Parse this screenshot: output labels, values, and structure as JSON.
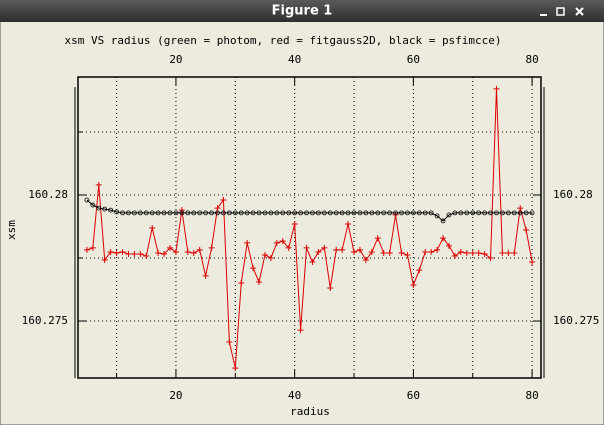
{
  "window": {
    "title": "Figure 1"
  },
  "chart_data": {
    "type": "line",
    "title": "xsm VS radius (green = photom, red = fitgauss2D, black = psfimcce)",
    "xlabel": "radius",
    "ylabel": "xsm",
    "x": [
      5,
      6,
      7,
      8,
      9,
      10,
      11,
      12,
      13,
      14,
      15,
      16,
      17,
      18,
      19,
      20,
      21,
      22,
      23,
      24,
      25,
      26,
      27,
      28,
      29,
      30,
      31,
      32,
      33,
      34,
      35,
      36,
      37,
      38,
      39,
      40,
      41,
      42,
      43,
      44,
      45,
      46,
      47,
      48,
      49,
      50,
      51,
      52,
      53,
      54,
      55,
      56,
      57,
      58,
      59,
      60,
      61,
      62,
      63,
      64,
      65,
      66,
      67,
      68,
      69,
      70,
      71,
      72,
      73,
      74,
      75,
      76,
      77,
      78,
      79,
      80
    ],
    "series": [
      {
        "color": "#dd0000",
        "marker": "+",
        "values": [
          160.27782,
          160.2779,
          160.2804,
          160.27742,
          160.27774,
          160.2777,
          160.27774,
          160.27766,
          160.27766,
          160.27766,
          160.27758,
          160.27869,
          160.2777,
          160.27766,
          160.2779,
          160.27774,
          160.2794,
          160.27774,
          160.2777,
          160.27782,
          160.27679,
          160.2779,
          160.27948,
          160.2798,
          160.27417,
          160.27313,
          160.27651,
          160.2781,
          160.2771,
          160.27655,
          160.27762,
          160.2775,
          160.2781,
          160.27817,
          160.2779,
          160.27885,
          160.27464,
          160.2779,
          160.27734,
          160.27774,
          160.2779,
          160.27631,
          160.27782,
          160.27782,
          160.27885,
          160.27774,
          160.27782,
          160.27742,
          160.27774,
          160.27829,
          160.2777,
          160.2777,
          160.27921,
          160.2777,
          160.27762,
          160.27643,
          160.27702,
          160.27774,
          160.27774,
          160.27782,
          160.27829,
          160.27798,
          160.27758,
          160.27774,
          160.2777,
          160.2777,
          160.2777,
          160.27766,
          160.2775,
          160.28421,
          160.2777,
          160.2777,
          160.2777,
          160.27948,
          160.27861,
          160.27734
        ]
      },
      {
        "color": "#000000",
        "marker": "o",
        "values": [
          160.2798,
          160.2796,
          160.27948,
          160.27944,
          160.2794,
          160.27933,
          160.27929,
          160.27929,
          160.27929,
          160.27929,
          160.27929,
          160.27929,
          160.27929,
          160.27929,
          160.27929,
          160.27929,
          160.27929,
          160.27929,
          160.27929,
          160.27929,
          160.27929,
          160.27929,
          160.27929,
          160.27929,
          160.27929,
          160.27929,
          160.27929,
          160.27929,
          160.27929,
          160.27929,
          160.27929,
          160.27929,
          160.27929,
          160.27929,
          160.27929,
          160.27929,
          160.27929,
          160.27929,
          160.27929,
          160.27929,
          160.27929,
          160.27929,
          160.27929,
          160.27929,
          160.27929,
          160.27929,
          160.27929,
          160.27929,
          160.27929,
          160.27929,
          160.27929,
          160.27929,
          160.27929,
          160.27929,
          160.27929,
          160.27929,
          160.27929,
          160.27929,
          160.27929,
          160.27917,
          160.27897,
          160.27921,
          160.27929,
          160.27929,
          160.27929,
          160.27929,
          160.27929,
          160.27929,
          160.27929,
          160.27929,
          160.27929,
          160.27929,
          160.27929,
          160.27929,
          160.27929,
          160.27929
        ]
      }
    ],
    "xlim": [
      3.5,
      81.5
    ],
    "xticks": [
      20,
      40,
      60,
      80
    ],
    "xminor": [
      10,
      30,
      50,
      70
    ],
    "ylim": [
      160.27274,
      160.28468
    ],
    "yticks": [
      160.275,
      160.28
    ],
    "yminor": [
      160.2775,
      160.2825
    ],
    "grid": true
  }
}
